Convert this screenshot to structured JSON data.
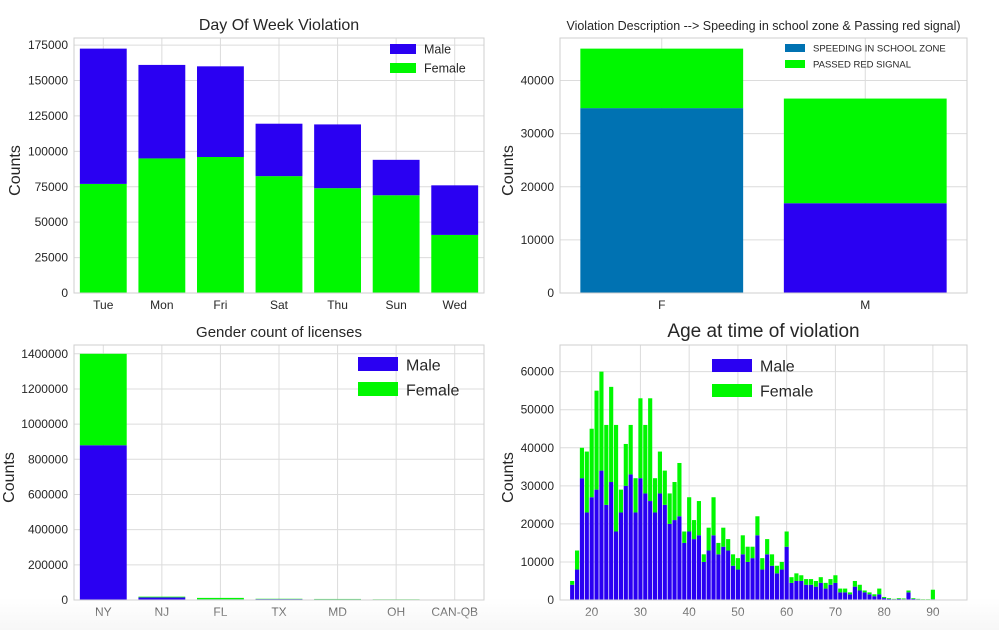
{
  "colors": {
    "male": "#2a00f2",
    "female": "#00f700",
    "school_zone": "#0072b2",
    "grid": "#dcdcdc",
    "frame": "#cfcfcf",
    "text": "#262626"
  },
  "chart_data": [
    {
      "id": "dow",
      "type": "bar",
      "stacked": true,
      "title": "Day Of Week Violation",
      "xlabel": "",
      "ylabel": "Counts",
      "categories": [
        "Tue",
        "Mon",
        "Fri",
        "Sat",
        "Thu",
        "Sun",
        "Wed"
      ],
      "series": [
        {
          "name": "Female",
          "values": [
            77000,
            95000,
            96000,
            82500,
            74000,
            69000,
            41000
          ]
        },
        {
          "name": "Male",
          "values": [
            95500,
            66000,
            64000,
            37000,
            45000,
            25000,
            35000
          ]
        }
      ],
      "ylim": [
        0,
        180000
      ],
      "yticks": [
        0,
        25000,
        50000,
        75000,
        100000,
        125000,
        150000,
        175000
      ],
      "legend": "top-right",
      "legend_order": [
        "Male",
        "Female"
      ],
      "grid": true
    },
    {
      "id": "violation",
      "type": "bar",
      "stacked": true,
      "title": "Violation Description  --> Speeding in school zone & Passing red signal)",
      "xlabel": "",
      "ylabel": "Counts",
      "categories": [
        "F",
        "M"
      ],
      "series": [
        {
          "name": "SPEEDING IN SCHOOL ZONE",
          "values": [
            34800,
            0
          ],
          "color_key": "school_zone"
        },
        {
          "name": "",
          "values": [
            0,
            16900
          ],
          "color_key": "male"
        },
        {
          "name": "PASSED RED SIGNAL",
          "values": [
            11200,
            19700
          ],
          "color_key": "female"
        }
      ],
      "ylim": [
        0,
        48000
      ],
      "yticks": [
        0,
        10000,
        20000,
        30000,
        40000
      ],
      "legend": "top-right",
      "legend_order": [
        "SPEEDING IN SCHOOL ZONE",
        "PASSED RED SIGNAL"
      ],
      "grid": true
    },
    {
      "id": "licenses",
      "type": "bar",
      "stacked": true,
      "title": "Gender count of licenses",
      "xlabel": "",
      "ylabel": "Counts",
      "categories": [
        "NY",
        "NJ",
        "FL",
        "TX",
        "MD",
        "OH",
        "CAN-QB"
      ],
      "series": [
        {
          "name": "Male",
          "values": [
            880000,
            15000,
            4000,
            5000,
            4000,
            3000,
            500
          ]
        },
        {
          "name": "Female",
          "values": [
            520000,
            4000,
            8000,
            2000,
            2000,
            1000,
            300
          ]
        }
      ],
      "ylim": [
        0,
        1450000
      ],
      "yticks": [
        0,
        200000,
        400000,
        600000,
        800000,
        1000000,
        1200000,
        1400000
      ],
      "legend": "top-right",
      "legend_order": [
        "Male",
        "Female"
      ],
      "grid": true
    },
    {
      "id": "age",
      "type": "bar",
      "stacked": true,
      "title": "Age at time of  violation",
      "xlabel": "",
      "ylabel": "Counts",
      "x": [
        16,
        17,
        18,
        19,
        20,
        21,
        22,
        23,
        24,
        25,
        26,
        27,
        28,
        29,
        30,
        31,
        32,
        33,
        34,
        35,
        36,
        37,
        38,
        39,
        40,
        41,
        42,
        43,
        44,
        45,
        46,
        47,
        48,
        49,
        50,
        51,
        52,
        53,
        54,
        55,
        56,
        57,
        58,
        59,
        60,
        61,
        62,
        63,
        64,
        65,
        66,
        67,
        68,
        69,
        70,
        71,
        72,
        73,
        74,
        75,
        76,
        77,
        78,
        79,
        80,
        81,
        82,
        83,
        84,
        85,
        86,
        87,
        88,
        89,
        90
      ],
      "series": [
        {
          "name": "Male",
          "values": [
            4000,
            8000,
            32000,
            23000,
            27000,
            29000,
            34000,
            25000,
            31000,
            18000,
            23000,
            30000,
            33000,
            23000,
            32000,
            28000,
            26000,
            23000,
            28000,
            25000,
            20000,
            21000,
            22000,
            15000,
            18000,
            16000,
            17000,
            10000,
            13000,
            17000,
            12000,
            14000,
            13000,
            9000,
            8000,
            12000,
            10000,
            11000,
            17000,
            8000,
            12000,
            9000,
            7000,
            8000,
            14000,
            4500,
            5000,
            5000,
            4000,
            4000,
            3500,
            4500,
            3000,
            4000,
            4500,
            2000,
            2000,
            1500,
            3500,
            2500,
            2000,
            1500,
            1000,
            1500,
            500,
            300,
            200,
            300,
            200,
            2000,
            300,
            200,
            100,
            100,
            200
          ]
        },
        {
          "name": "Female",
          "values": [
            1000,
            5000,
            8000,
            16000,
            18000,
            26000,
            26000,
            21000,
            25000,
            28000,
            6000,
            11000,
            13000,
            9000,
            21000,
            18000,
            27000,
            9000,
            11000,
            9000,
            8000,
            10000,
            14000,
            3000,
            9000,
            5000,
            9000,
            2000,
            6000,
            10000,
            3000,
            5000,
            3000,
            3000,
            3000,
            5000,
            4000,
            3000,
            5000,
            3000,
            4000,
            3000,
            2000,
            2000,
            4000,
            1500,
            2000,
            1500,
            1500,
            1500,
            1500,
            1500,
            1500,
            1500,
            2000,
            1000,
            1000,
            500,
            1500,
            1500,
            500,
            500,
            500,
            1500,
            300,
            200,
            100,
            200,
            200,
            500,
            200,
            100,
            100,
            100,
            2500
          ]
        }
      ],
      "xlim": [
        13.5,
        97
      ],
      "xticks": [
        20,
        30,
        40,
        50,
        60,
        70,
        80,
        90
      ],
      "ylim": [
        0,
        67000
      ],
      "yticks": [
        0,
        10000,
        20000,
        30000,
        40000,
        50000,
        60000
      ],
      "legend": "upper-center",
      "legend_order": [
        "Male",
        "Female"
      ],
      "grid": true
    }
  ]
}
